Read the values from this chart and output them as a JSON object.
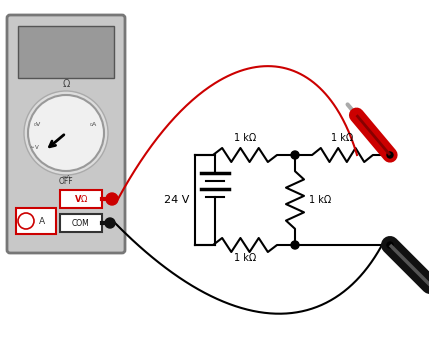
{
  "bg_color": "#ffffff",
  "wire_red": "#cc0000",
  "wire_black": "#000000",
  "red_probe_color": "#cc0000",
  "resistor_labels": [
    "1 kΩ",
    "1 kΩ",
    "1 kΩ",
    "1 kΩ"
  ],
  "battery_label": "24 V",
  "meter_facecolor": "#c8c8c8",
  "meter_border": "#888888",
  "screen_color": "#999999",
  "dial_bg": "#f0f0f0",
  "figsize": [
    4.29,
    3.46
  ],
  "dpi": 100
}
